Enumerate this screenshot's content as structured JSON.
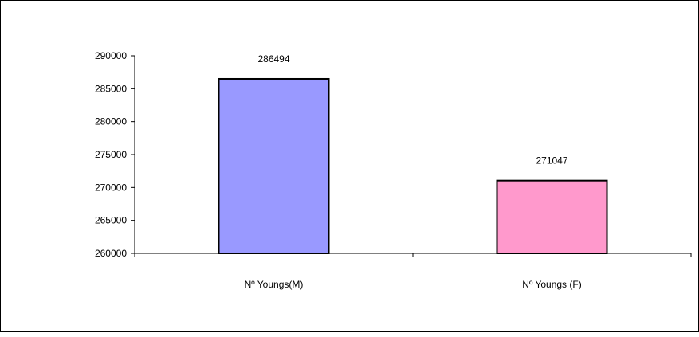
{
  "chart_data": {
    "type": "bar",
    "categories": [
      "Nº Youngs(M)",
      "Nº Youngs (F)"
    ],
    "values": [
      286494,
      271047
    ],
    "data_labels": [
      "286494",
      "271047"
    ],
    "bar_colors": [
      "#9999ff",
      "#ff99cc"
    ],
    "y_ticks": [
      "260000",
      "265000",
      "270000",
      "275000",
      "280000",
      "285000",
      "290000"
    ],
    "ylim": [
      260000,
      290000
    ],
    "grid": false,
    "legend": "none"
  }
}
